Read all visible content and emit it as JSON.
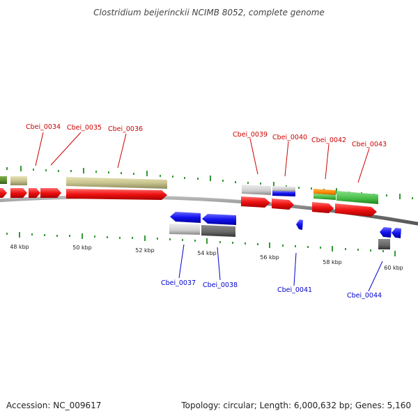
{
  "title": "Clostridium beijerinckii NCIMB 8052, complete genome",
  "footer": {
    "accession": "Accession: NC_009617",
    "summary": "Topology: circular; Length: 6,000,632 bp; Genes: 5,160"
  },
  "colors": {
    "forward_label": "#cc0000",
    "reverse_label": "#0000cc",
    "backbone": "#888888",
    "tick": "#339933",
    "cds_forward": "#ee1111",
    "cds_reverse": "#1111ee",
    "gene_khaki": "#c8c48e",
    "gene_grey": "#cccccc",
    "gene_dark": "#666666",
    "gene_green": "#44bb44",
    "gene_orange": "#ff8800",
    "gene_olive": "#5a8a2a"
  },
  "scale_labels": [
    {
      "text": "48 kbp"
    },
    {
      "text": "50 kbp"
    },
    {
      "text": "52 kbp"
    },
    {
      "text": "54 kbp"
    },
    {
      "text": "56 kbp"
    },
    {
      "text": "58 kbp"
    },
    {
      "text": "60 kbp"
    }
  ],
  "gene_labels": [
    {
      "text": "Cbei_0034",
      "strand": "forward"
    },
    {
      "text": "Cbei_0035",
      "strand": "forward"
    },
    {
      "text": "Cbei_0036",
      "strand": "forward"
    },
    {
      "text": "Cbei_0039",
      "strand": "forward"
    },
    {
      "text": "Cbei_0040",
      "strand": "forward"
    },
    {
      "text": "Cbei_0042",
      "strand": "forward"
    },
    {
      "text": "Cbei_0043",
      "strand": "forward"
    },
    {
      "text": "Cbei_0037",
      "strand": "reverse"
    },
    {
      "text": "Cbei_0038",
      "strand": "reverse"
    },
    {
      "text": "Cbei_0041",
      "strand": "reverse"
    },
    {
      "text": "Cbei_0044",
      "strand": "reverse"
    }
  ]
}
